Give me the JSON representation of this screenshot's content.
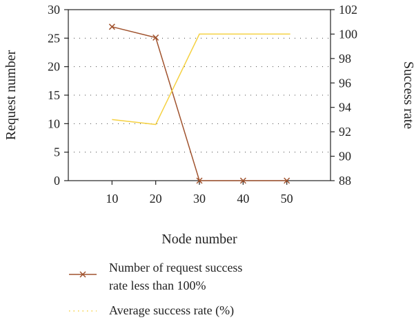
{
  "chart_data": {
    "type": "line",
    "title": "",
    "xlabel": "Node number",
    "ylabel": "Request number",
    "y2label": "Success rate",
    "x": [
      10,
      20,
      30,
      40,
      50
    ],
    "xlim": [
      0,
      60
    ],
    "ylim": [
      0,
      30
    ],
    "y2lim": [
      88,
      102
    ],
    "yticks": [
      0,
      5,
      10,
      15,
      20,
      25,
      30
    ],
    "y2ticks": [
      88,
      90,
      92,
      94,
      96,
      98,
      100,
      102
    ],
    "grid": "horizontal dotted",
    "legend_position": "below",
    "series": [
      {
        "name_line1": "Number of request success",
        "name_line2": "rate less than 100%",
        "axis": "left",
        "color": "#a0522d",
        "marker": "x",
        "values": [
          27,
          25.1,
          0,
          0,
          0
        ]
      },
      {
        "name": "Average success rate (%)",
        "axis": "right",
        "color": "#f5d142",
        "marker": "none",
        "values": [
          93,
          92.6,
          100,
          100,
          100
        ]
      }
    ]
  }
}
